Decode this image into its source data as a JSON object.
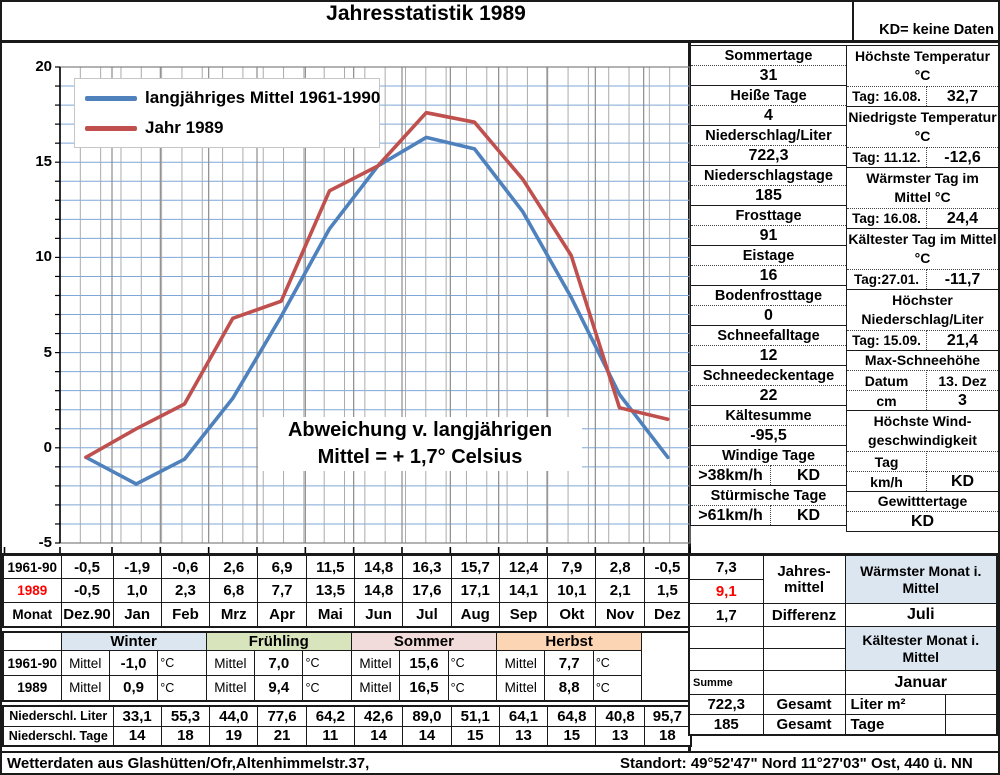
{
  "header": {
    "title": "Jahresstatistik 1989",
    "kd_note": "KD= keine Daten"
  },
  "chart_data": {
    "type": "line",
    "title": "Jahresstatistik 1989",
    "categories": [
      "Dez.90",
      "Jan",
      "Feb",
      "Mrz",
      "Apr",
      "Mai",
      "Jun",
      "Jul",
      "Aug",
      "Sep",
      "Okt",
      "Nov",
      "Dez"
    ],
    "series": [
      {
        "name": "langjähriges Mittel 1961-1990",
        "color": "#4F81BD",
        "values": [
          -0.5,
          -1.9,
          -0.6,
          2.6,
          6.9,
          11.5,
          14.8,
          16.3,
          15.7,
          12.4,
          7.9,
          2.8,
          -0.5
        ]
      },
      {
        "name": "Jahr 1989",
        "color": "#C0504D",
        "values": [
          -0.5,
          1.0,
          2.3,
          6.8,
          7.7,
          13.5,
          14.8,
          17.6,
          17.1,
          14.1,
          10.1,
          2.1,
          1.5
        ]
      }
    ],
    "ylim": [
      -5,
      20
    ],
    "yticks": [
      -5,
      0,
      5,
      10,
      15,
      20
    ],
    "xlabel": "",
    "ylabel": "",
    "legend_position": "top-left",
    "grid": {
      "h_color": "#7DA7D8",
      "v_color": "#ABABAB",
      "month_color": "#8C8C8C"
    },
    "annotation": [
      "Abweichung v. langjährigen",
      "Mittel = + 1,7° Celsius"
    ]
  },
  "stats_left": {
    "items": [
      {
        "label": "Sommertage",
        "value": "31"
      },
      {
        "label": "Heiße Tage",
        "value": "4"
      },
      {
        "label": "Niederschlag/Liter",
        "value": "722,3"
      },
      {
        "label": "Niederschlagstage",
        "value": "185"
      },
      {
        "label": "Frosttage",
        "value": "91"
      },
      {
        "label": "Eistage",
        "value": "16"
      },
      {
        "label": "Bodenfrosttage",
        "value": "0"
      },
      {
        "label": "Schneefalltage",
        "value": "12"
      },
      {
        "label": "Schneedeckentage",
        "value": "22"
      },
      {
        "label": "Kältesumme",
        "value": "-95,5"
      },
      {
        "label": "Windige Tage",
        "sub": ">38km/h",
        "value": "KD"
      },
      {
        "label": "Stürmische Tage",
        "sub": ">61km/h",
        "value": "KD"
      }
    ]
  },
  "stats_right": {
    "items": [
      {
        "label": "Höchste Temperatur °C",
        "sub": "Tag: 16.08.",
        "value": "32,7"
      },
      {
        "label": "Niedrigste Temperatur °C",
        "sub": "Tag: 11.12.",
        "value": "-12,6"
      },
      {
        "label": "Wärmster Tag im Mittel °C",
        "sub": "Tag: 16.08.",
        "value": "24,4"
      },
      {
        "label": "Kältester Tag im Mittel °C",
        "sub": "Tag:27.01.",
        "value": "-11,7"
      },
      {
        "label": "Höchster Niederschlag/Liter",
        "sub": "Tag: 15.09.",
        "value": "21,4"
      },
      {
        "label": "Max-Schneehöhe",
        "rows": [
          {
            "k": "Datum",
            "v": "13. Dez"
          },
          {
            "k": "cm",
            "v": "3"
          }
        ]
      },
      {
        "label": "Höchste Wind-geschwindigkeit",
        "rows": [
          {
            "k": "Tag",
            "v": ""
          },
          {
            "k": "km/h",
            "v": "KD"
          }
        ]
      },
      {
        "label": "Gewitttertage",
        "value": "KD"
      }
    ]
  },
  "monthly": {
    "month_row_label": "Monat",
    "months": [
      "Dez.90",
      "Jan",
      "Feb",
      "Mrz",
      "Apr",
      "Mai",
      "Jun",
      "Jul",
      "Aug",
      "Sep",
      "Okt",
      "Nov",
      "Dez"
    ],
    "rows": [
      {
        "label": "1961-90",
        "values": [
          "-0,5",
          "-1,9",
          "-0,6",
          "2,6",
          "6,9",
          "11,5",
          "14,8",
          "16,3",
          "15,7",
          "12,4",
          "7,9",
          "2,8",
          "-0,5"
        ]
      },
      {
        "label": "1989",
        "values": [
          "-0,5",
          "1,0",
          "2,3",
          "6,8",
          "7,7",
          "13,5",
          "14,8",
          "17,6",
          "17,1",
          "14,1",
          "10,1",
          "2,1",
          "1,5"
        ]
      }
    ]
  },
  "season": {
    "cell_label": "Mittel",
    "unit": "°C",
    "names": [
      {
        "name": "Winter",
        "color": "#DCE6F1"
      },
      {
        "name": "Frühling",
        "color": "#D8E4BC"
      },
      {
        "name": "Sommer",
        "color": "#F2DCDB"
      },
      {
        "name": "Herbst",
        "color": "#FBD5B4"
      }
    ],
    "rows": [
      {
        "label": "1961-90",
        "values": [
          "-1,0",
          "7,0",
          "15,6",
          "7,7"
        ]
      },
      {
        "label": "1989",
        "values": [
          "0,9",
          "9,4",
          "16,5",
          "8,8"
        ]
      }
    ]
  },
  "precip": {
    "rows": [
      {
        "label": "Niederschl. Liter",
        "values": [
          "33,1",
          "55,3",
          "44,0",
          "77,6",
          "64,2",
          "42,6",
          "89,0",
          "51,1",
          "64,1",
          "64,8",
          "40,8",
          "95,7"
        ]
      },
      {
        "label": "Niederschl. Tage",
        "values": [
          "14",
          "18",
          "19",
          "21",
          "11",
          "14",
          "14",
          "15",
          "13",
          "15",
          "13",
          "18"
        ]
      }
    ]
  },
  "summary": {
    "mean_1961_90": "7,3",
    "mean_1989": "9,1",
    "mean_label": "Jahres-mittel",
    "difference": "1,7",
    "difference_label": "Differenz",
    "warmest_month_label": "Wärmster Monat i. Mittel",
    "warmest_month": "Juli",
    "coldest_month_label": "Kältester Monat i. Mittel",
    "coldest_month": "Januar",
    "summe_label": "Summe",
    "precip_total": "722,3",
    "precip_total_label": "Gesamt",
    "precip_unit": "Liter m²",
    "raindays_total": "185",
    "raindays_total_label": "Gesamt",
    "raindays_unit": "Tage"
  },
  "footer": {
    "left": "Wetterdaten aus Glashütten/Ofr,Altenhimmelstr.37,",
    "right": "Standort: 49°52'47\" Nord   11°27'03\" Ost, 440 ü. NN"
  }
}
